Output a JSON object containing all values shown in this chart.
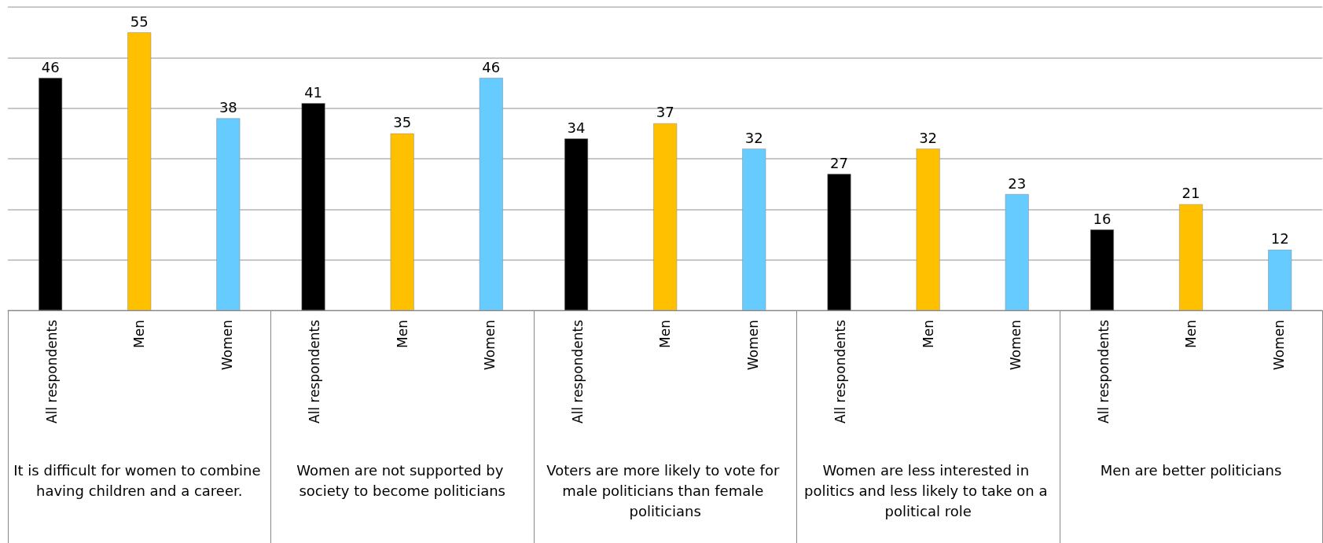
{
  "chart_data": {
    "type": "bar",
    "categories": [
      "It is difficult for women to combine having children and a career.",
      "Women are not supported by society to become politicians",
      "Voters are more likely to vote for male politicians than female politicians",
      "Women are less interested in politics and less likely to take on a political role",
      "Men are better politicians"
    ],
    "series": [
      {
        "name": "All respondents",
        "color": "#000000",
        "values": [
          46,
          41,
          34,
          27,
          16
        ]
      },
      {
        "name": "Men",
        "color": "#ffc000",
        "values": [
          55,
          35,
          37,
          32,
          21
        ]
      },
      {
        "name": "Women",
        "color": "#66ccff",
        "values": [
          38,
          46,
          32,
          23,
          12
        ]
      }
    ],
    "ylim": [
      0,
      60
    ],
    "yticks": [
      {
        "value": 0,
        "label": null
      },
      {
        "value": 10,
        "label": null
      },
      {
        "value": 20,
        "label": null
      },
      {
        "value": 30,
        "label": null
      },
      {
        "value": 40,
        "label": null
      },
      {
        "value": 50,
        "label": null
      },
      {
        "value": 60,
        "label": null
      }
    ],
    "tick_labels": "x",
    "grid": "y",
    "legend": false,
    "data_labels": true
  }
}
